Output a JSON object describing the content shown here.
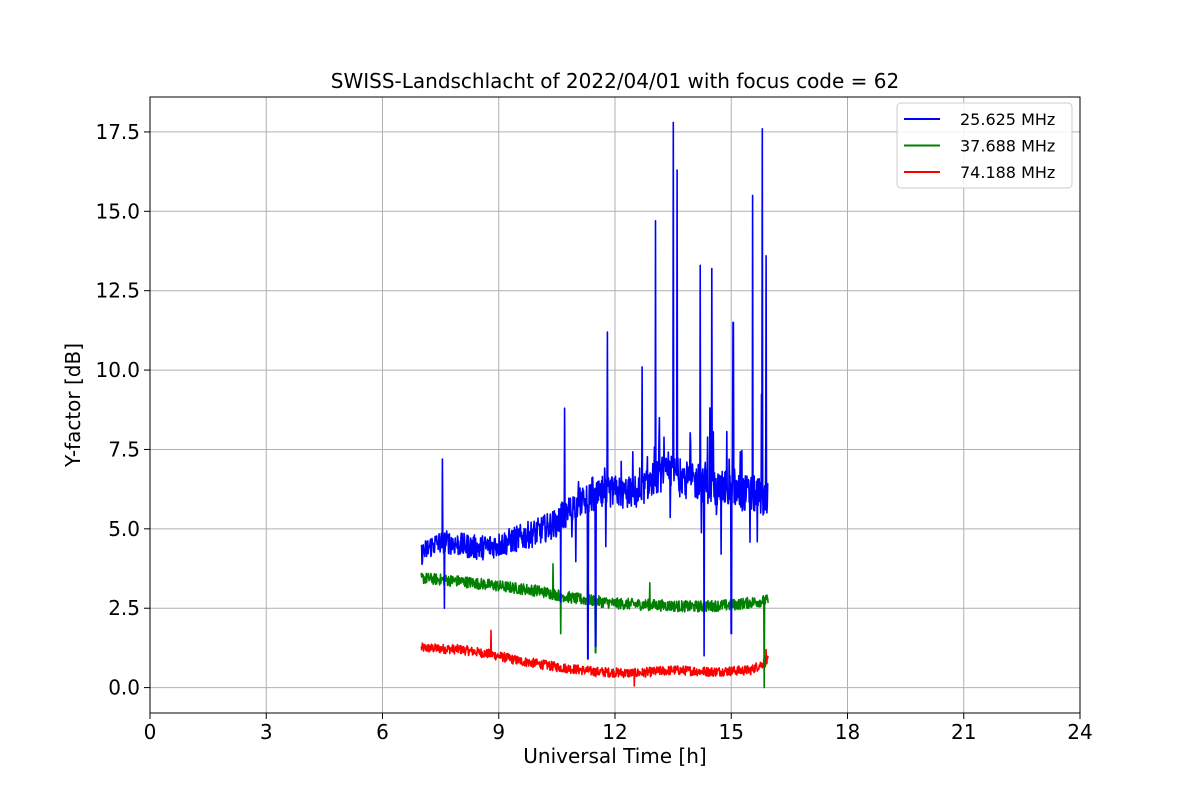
{
  "chart_data": {
    "type": "line",
    "title": "SWISS-Landschlacht of 2022/04/01 with focus code = 62",
    "xlabel": "Universal Time [h]",
    "ylabel": "Y-factor [dB]",
    "xlim": [
      0,
      24
    ],
    "ylim": [
      -0.8,
      18.6
    ],
    "xticks": [
      0,
      3,
      6,
      9,
      12,
      15,
      18,
      21,
      24
    ],
    "xtick_labels": [
      "0",
      "3",
      "6",
      "9",
      "12",
      "15",
      "18",
      "21",
      "24"
    ],
    "yticks": [
      0.0,
      2.5,
      5.0,
      7.5,
      10.0,
      12.5,
      15.0,
      17.5
    ],
    "ytick_labels": [
      "0.0",
      "2.5",
      "5.0",
      "7.5",
      "10.0",
      "12.5",
      "15.0",
      "17.5"
    ],
    "grid": true,
    "legend_position": "top-right",
    "series": [
      {
        "name": "25.625 MHz",
        "color": "#0000ff",
        "x": [
          7.0,
          7.3,
          7.6,
          8.0,
          8.5,
          9.0,
          9.5,
          10.0,
          10.5,
          11.0,
          11.5,
          12.0,
          12.5,
          13.0,
          13.5,
          14.0,
          14.5,
          15.0,
          15.5,
          15.95
        ],
        "y": [
          4.2,
          4.5,
          4.6,
          4.5,
          4.4,
          4.5,
          4.7,
          4.9,
          5.2,
          5.8,
          6.0,
          6.2,
          6.0,
          6.6,
          6.8,
          6.5,
          6.3,
          6.2,
          6.1,
          6.0
        ],
        "peaks": [
          [
            7.55,
            7.2
          ],
          [
            10.7,
            8.8
          ],
          [
            11.8,
            11.2
          ],
          [
            12.7,
            10.1
          ],
          [
            13.05,
            14.7
          ],
          [
            13.5,
            17.8
          ],
          [
            13.6,
            16.3
          ],
          [
            14.2,
            13.3
          ],
          [
            14.5,
            13.2
          ],
          [
            15.05,
            11.5
          ],
          [
            15.55,
            15.5
          ],
          [
            15.8,
            17.6
          ],
          [
            15.9,
            13.6
          ]
        ],
        "dips": [
          [
            7.6,
            2.5
          ],
          [
            10.6,
            2.7
          ],
          [
            11.3,
            0.9
          ],
          [
            11.5,
            1.3
          ],
          [
            14.3,
            1.0
          ],
          [
            15.0,
            1.7
          ]
        ]
      },
      {
        "name": "37.688 MHz",
        "color": "#008000",
        "x": [
          7.0,
          8.0,
          9.0,
          10.0,
          11.0,
          12.0,
          13.0,
          14.0,
          15.0,
          15.95
        ],
        "y": [
          3.45,
          3.35,
          3.2,
          3.05,
          2.8,
          2.65,
          2.6,
          2.55,
          2.6,
          2.75
        ],
        "peaks": [
          [
            10.4,
            3.9
          ],
          [
            11.3,
            3.8
          ],
          [
            12.9,
            3.3
          ]
        ],
        "dips": [
          [
            10.6,
            1.7
          ],
          [
            11.5,
            1.1
          ],
          [
            15.85,
            0.0
          ]
        ]
      },
      {
        "name": "74.188 MHz",
        "color": "#ff0000",
        "x": [
          7.0,
          8.0,
          8.8,
          9.5,
          10.5,
          11.5,
          12.5,
          13.5,
          14.5,
          15.5,
          15.95
        ],
        "y": [
          1.25,
          1.2,
          1.05,
          0.85,
          0.65,
          0.5,
          0.45,
          0.55,
          0.5,
          0.55,
          0.85
        ],
        "peaks": [
          [
            8.8,
            1.8
          ],
          [
            15.9,
            1.2
          ]
        ],
        "dips": [
          [
            12.5,
            0.05
          ]
        ]
      }
    ]
  }
}
